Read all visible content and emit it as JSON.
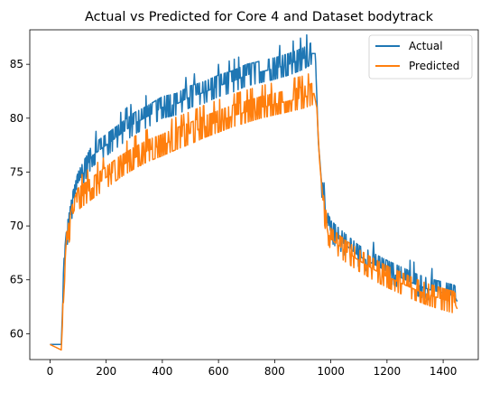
{
  "chart_data": {
    "type": "line",
    "title": "Actual vs Predicted for Core 4 and Dataset bodytrack",
    "xlabel": "",
    "ylabel": "",
    "xlim": [
      -72,
      1525
    ],
    "ylim": [
      57.6,
      88.2
    ],
    "x_ticks": [
      0,
      200,
      400,
      600,
      800,
      1000,
      1200,
      1400
    ],
    "y_ticks": [
      60,
      65,
      70,
      75,
      80,
      85
    ],
    "grid": false,
    "legend_position": "top-right",
    "series": [
      {
        "name": "Actual",
        "color": "#1f77b4",
        "noise": 1.2,
        "points": [
          [
            0,
            59
          ],
          [
            40,
            59
          ],
          [
            50,
            66
          ],
          [
            60,
            69
          ],
          [
            80,
            72
          ],
          [
            100,
            74
          ],
          [
            120,
            75
          ],
          [
            150,
            76.5
          ],
          [
            200,
            77.5
          ],
          [
            250,
            78.5
          ],
          [
            300,
            79.5
          ],
          [
            350,
            80.2
          ],
          [
            400,
            81
          ],
          [
            450,
            81.3
          ],
          [
            500,
            82
          ],
          [
            550,
            82.4
          ],
          [
            600,
            83
          ],
          [
            650,
            83.4
          ],
          [
            700,
            84
          ],
          [
            750,
            84.3
          ],
          [
            800,
            84.6
          ],
          [
            850,
            85
          ],
          [
            900,
            85.5
          ],
          [
            930,
            86
          ],
          [
            945,
            86
          ],
          [
            955,
            78
          ],
          [
            970,
            73
          ],
          [
            985,
            70.5
          ],
          [
            1000,
            69.5
          ],
          [
            1050,
            68.3
          ],
          [
            1100,
            67.2
          ],
          [
            1150,
            66.5
          ],
          [
            1200,
            65.8
          ],
          [
            1250,
            65.2
          ],
          [
            1300,
            64.6
          ],
          [
            1350,
            64.1
          ],
          [
            1400,
            63.8
          ],
          [
            1440,
            63.5
          ],
          [
            1450,
            63
          ]
        ]
      },
      {
        "name": "Predicted",
        "color": "#ff7f0e",
        "noise": 1.6,
        "points": [
          [
            0,
            59
          ],
          [
            40,
            58.5
          ],
          [
            50,
            64
          ],
          [
            60,
            68.5
          ],
          [
            80,
            71
          ],
          [
            100,
            72.5
          ],
          [
            150,
            73.5
          ],
          [
            200,
            74.5
          ],
          [
            250,
            75.5
          ],
          [
            300,
            76.3
          ],
          [
            350,
            77
          ],
          [
            400,
            77.5
          ],
          [
            450,
            78.1
          ],
          [
            500,
            78.6
          ],
          [
            550,
            79.2
          ],
          [
            600,
            79.7
          ],
          [
            650,
            80.2
          ],
          [
            700,
            80.6
          ],
          [
            750,
            81
          ],
          [
            800,
            81.3
          ],
          [
            850,
            81.6
          ],
          [
            900,
            81.9
          ],
          [
            940,
            82.3
          ],
          [
            950,
            81
          ],
          [
            960,
            76
          ],
          [
            975,
            71.5
          ],
          [
            990,
            69.3
          ],
          [
            1000,
            68.8
          ],
          [
            1050,
            67.7
          ],
          [
            1100,
            66.8
          ],
          [
            1150,
            66
          ],
          [
            1200,
            65.3
          ],
          [
            1250,
            64.7
          ],
          [
            1300,
            64.1
          ],
          [
            1350,
            63.6
          ],
          [
            1400,
            63.2
          ],
          [
            1440,
            62.9
          ],
          [
            1450,
            62.3
          ]
        ]
      }
    ]
  }
}
